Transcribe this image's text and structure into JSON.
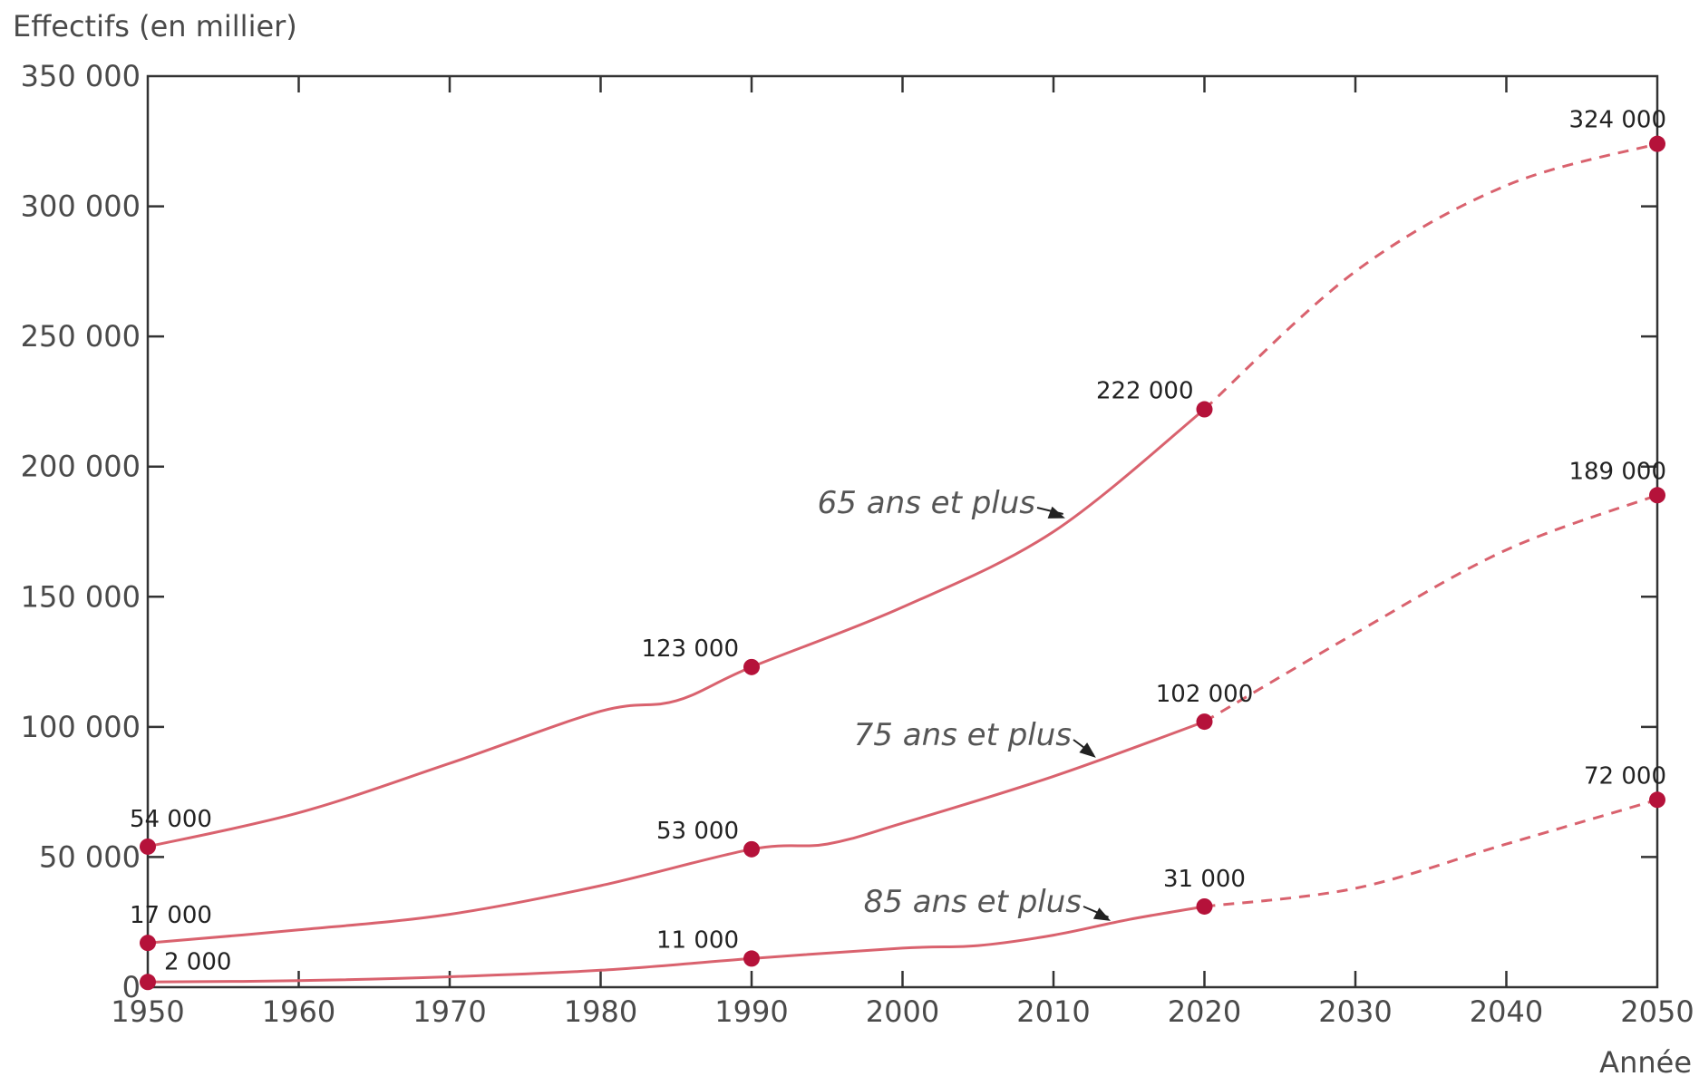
{
  "chart_data": {
    "type": "line",
    "ylabel": "Effectifs (en millier)",
    "xlabel": "Année",
    "xlim": [
      1950,
      2050
    ],
    "ylim": [
      0,
      350000
    ],
    "x_ticks": [
      "1950",
      "1960",
      "1970",
      "1980",
      "1990",
      "2000",
      "2010",
      "2020",
      "2030",
      "2040",
      "2050"
    ],
    "y_ticks": [
      "0",
      "50 000",
      "100 000",
      "150 000",
      "200 000",
      "250 000",
      "300 000",
      "350 000"
    ],
    "grid": false,
    "line_color": "#d9626e",
    "marker_color": "#b5123a",
    "series": [
      {
        "name": "65 ans et plus",
        "observed": [
          [
            1950,
            54000
          ],
          [
            1960,
            67000
          ],
          [
            1970,
            86000
          ],
          [
            1980,
            106000
          ],
          [
            1985,
            110000
          ],
          [
            1990,
            123000
          ],
          [
            2000,
            146000
          ],
          [
            2010,
            175000
          ],
          [
            2020,
            222000
          ]
        ],
        "projected": [
          [
            2020,
            222000
          ],
          [
            2030,
            275000
          ],
          [
            2040,
            308000
          ],
          [
            2050,
            324000
          ]
        ],
        "markers": [
          {
            "x": 1950,
            "y": 54000,
            "label": "54 000"
          },
          {
            "x": 1990,
            "y": 123000,
            "label": "123 000"
          },
          {
            "x": 2020,
            "y": 222000,
            "label": "222 000"
          },
          {
            "x": 2050,
            "y": 324000,
            "label": "324 000"
          }
        ]
      },
      {
        "name": "75 ans et plus",
        "observed": [
          [
            1950,
            17000
          ],
          [
            1960,
            22000
          ],
          [
            1970,
            28000
          ],
          [
            1980,
            39000
          ],
          [
            1990,
            53000
          ],
          [
            1995,
            55000
          ],
          [
            2000,
            63000
          ],
          [
            2010,
            81000
          ],
          [
            2020,
            102000
          ]
        ],
        "projected": [
          [
            2020,
            102000
          ],
          [
            2030,
            136000
          ],
          [
            2040,
            168000
          ],
          [
            2050,
            189000
          ]
        ],
        "markers": [
          {
            "x": 1950,
            "y": 17000,
            "label": "17 000"
          },
          {
            "x": 1990,
            "y": 53000,
            "label": "53 000"
          },
          {
            "x": 2020,
            "y": 102000,
            "label": "102 000"
          },
          {
            "x": 2050,
            "y": 189000,
            "label": "189 000"
          }
        ]
      },
      {
        "name": "85 ans et plus",
        "observed": [
          [
            1950,
            2000
          ],
          [
            1960,
            2500
          ],
          [
            1970,
            4000
          ],
          [
            1980,
            6500
          ],
          [
            1990,
            11000
          ],
          [
            2000,
            15000
          ],
          [
            2005,
            16000
          ],
          [
            2010,
            20000
          ],
          [
            2015,
            26000
          ],
          [
            2020,
            31000
          ]
        ],
        "projected": [
          [
            2020,
            31000
          ],
          [
            2030,
            38000
          ],
          [
            2040,
            55000
          ],
          [
            2050,
            72000
          ]
        ],
        "markers": [
          {
            "x": 1950,
            "y": 2000,
            "label": "2 000"
          },
          {
            "x": 1990,
            "y": 11000,
            "label": "11 000"
          },
          {
            "x": 2020,
            "y": 31000,
            "label": "31 000"
          },
          {
            "x": 2050,
            "y": 72000,
            "label": "72 000"
          }
        ]
      }
    ]
  }
}
